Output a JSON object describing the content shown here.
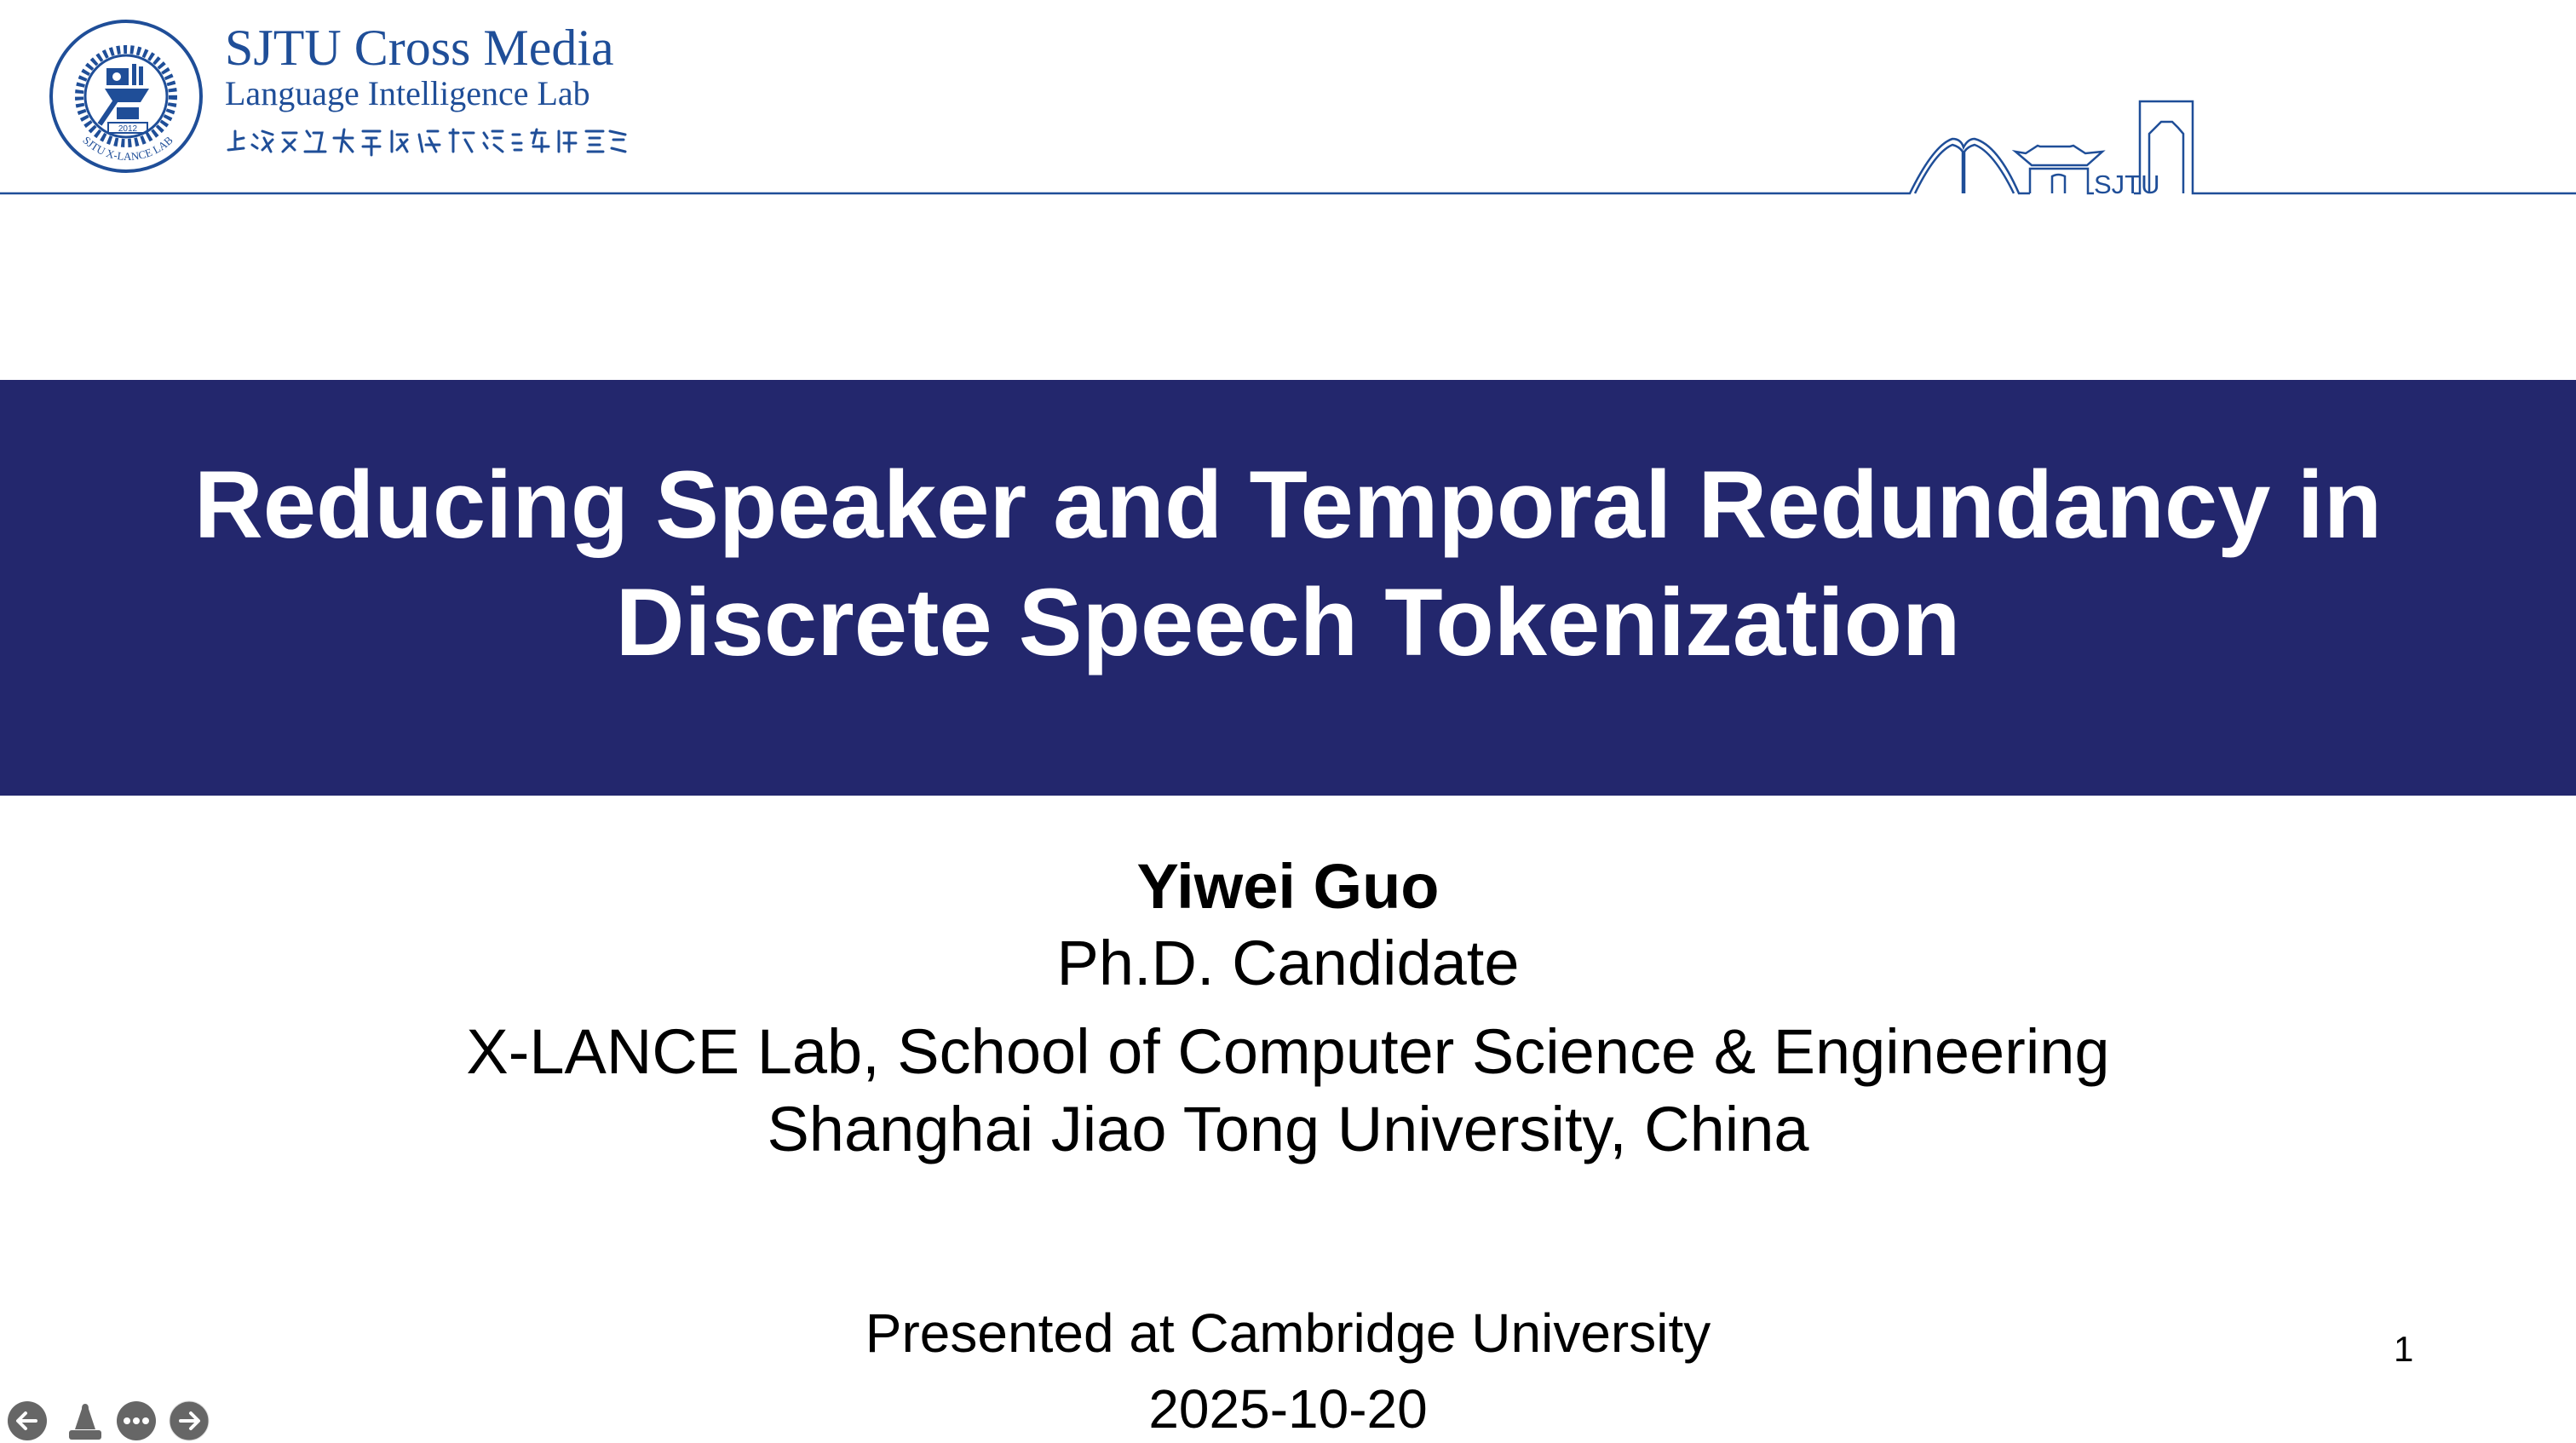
{
  "header": {
    "logo_title": "SJTU Cross Media",
    "logo_subtitle": "Language Intelligence Lab",
    "logo_chinese": "上海交通大學跨媒體語言智能實驗室",
    "seal_text": "SJTU X-LANCE LAB",
    "seal_year": "2012",
    "skyline_label": "SJTU"
  },
  "slide": {
    "title_line1": "Reducing Speaker and Temporal Redundancy in",
    "title_line2": "Discrete Speech Tokenization",
    "author": "Yiwei Guo",
    "role": "Ph.D. Candidate",
    "affiliation_line1": "X-LANCE Lab, School of Computer Science & Engineering",
    "affiliation_line2": "Shanghai Jiao Tong University, China",
    "venue": "Presented at Cambridge University",
    "date": "2025-10-20",
    "page_number": "1"
  },
  "controls": {
    "icons": [
      "arrow-left-icon",
      "pointer-icon",
      "more-icon",
      "arrow-right-icon"
    ]
  },
  "colors": {
    "brand_blue": "#1f4e98",
    "band": "#23276d",
    "control_gray": "#666666"
  }
}
